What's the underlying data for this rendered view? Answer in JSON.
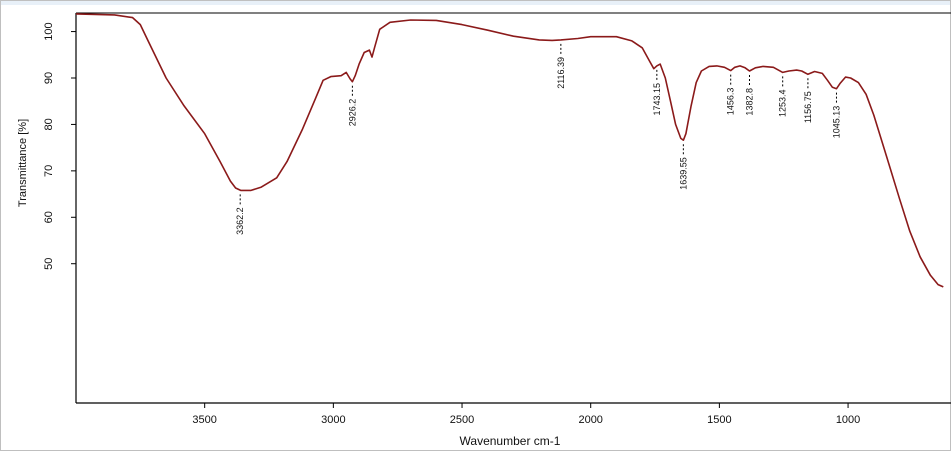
{
  "chart_data": {
    "type": "line",
    "title": "",
    "xlabel": "Wavenumber cm-1",
    "ylabel": "Transmittance [%]",
    "xlim": [
      4000,
      600
    ],
    "ylim": [
      20,
      104
    ],
    "x_ticks": [
      3500,
      3000,
      2500,
      2000,
      1500,
      1000
    ],
    "y_ticks": [
      50,
      60,
      70,
      80,
      90,
      100
    ],
    "grid": false,
    "line_color": "#8b1a1a",
    "series": [
      {
        "values": [
          [
            4000,
            103.8
          ],
          [
            3850,
            103.6
          ],
          [
            3780,
            103.0
          ],
          [
            3750,
            101.5
          ],
          [
            3720,
            98.0
          ],
          [
            3650,
            90.0
          ],
          [
            3580,
            84.0
          ],
          [
            3500,
            78.0
          ],
          [
            3440,
            72.0
          ],
          [
            3400,
            67.8
          ],
          [
            3380,
            66.3
          ],
          [
            3360,
            65.8
          ],
          [
            3320,
            65.8
          ],
          [
            3280,
            66.5
          ],
          [
            3220,
            68.5
          ],
          [
            3180,
            72.0
          ],
          [
            3120,
            79.0
          ],
          [
            3070,
            85.5
          ],
          [
            3040,
            89.5
          ],
          [
            3010,
            90.3
          ],
          [
            2970,
            90.5
          ],
          [
            2950,
            91.2
          ],
          [
            2935,
            89.8
          ],
          [
            2926,
            89.2
          ],
          [
            2915,
            90.5
          ],
          [
            2900,
            93.0
          ],
          [
            2880,
            95.5
          ],
          [
            2860,
            96.0
          ],
          [
            2850,
            94.5
          ],
          [
            2840,
            96.5
          ],
          [
            2820,
            100.5
          ],
          [
            2780,
            102.0
          ],
          [
            2700,
            102.5
          ],
          [
            2600,
            102.4
          ],
          [
            2500,
            101.5
          ],
          [
            2400,
            100.3
          ],
          [
            2300,
            99.0
          ],
          [
            2200,
            98.2
          ],
          [
            2150,
            98.1
          ],
          [
            2116,
            98.2
          ],
          [
            2050,
            98.5
          ],
          [
            2000,
            98.9
          ],
          [
            1900,
            98.9
          ],
          [
            1840,
            98.0
          ],
          [
            1800,
            96.5
          ],
          [
            1770,
            93.5
          ],
          [
            1755,
            92.0
          ],
          [
            1743,
            92.6
          ],
          [
            1730,
            93.0
          ],
          [
            1710,
            90.0
          ],
          [
            1690,
            85.0
          ],
          [
            1670,
            80.0
          ],
          [
            1650,
            77.0
          ],
          [
            1640,
            76.6
          ],
          [
            1630,
            78.0
          ],
          [
            1610,
            84.0
          ],
          [
            1590,
            89.0
          ],
          [
            1570,
            91.5
          ],
          [
            1540,
            92.5
          ],
          [
            1510,
            92.6
          ],
          [
            1480,
            92.3
          ],
          [
            1456,
            91.6
          ],
          [
            1440,
            92.3
          ],
          [
            1420,
            92.6
          ],
          [
            1400,
            92.2
          ],
          [
            1383,
            91.5
          ],
          [
            1360,
            92.2
          ],
          [
            1330,
            92.5
          ],
          [
            1290,
            92.3
          ],
          [
            1254,
            91.2
          ],
          [
            1230,
            91.5
          ],
          [
            1200,
            91.7
          ],
          [
            1180,
            91.5
          ],
          [
            1156,
            90.8
          ],
          [
            1130,
            91.4
          ],
          [
            1100,
            91.0
          ],
          [
            1080,
            89.5
          ],
          [
            1061,
            88.0
          ],
          [
            1045,
            87.7
          ],
          [
            1030,
            88.9
          ],
          [
            1010,
            90.2
          ],
          [
            990,
            90.0
          ],
          [
            960,
            89.0
          ],
          [
            930,
            86.5
          ],
          [
            900,
            82.0
          ],
          [
            850,
            73.0
          ],
          [
            800,
            64.0
          ],
          [
            760,
            57.0
          ],
          [
            720,
            51.5
          ],
          [
            680,
            47.5
          ],
          [
            650,
            45.5
          ],
          [
            630,
            45.0
          ]
        ]
      }
    ],
    "peaks": [
      {
        "x": 3362,
        "y": 65.8,
        "label": "3362.2"
      },
      {
        "x": 2926,
        "y": 89.2,
        "label": "2926.2"
      },
      {
        "x": 2116,
        "y": 98.2,
        "label": "2116.39"
      },
      {
        "x": 1743,
        "y": 92.6,
        "label": "1743.15"
      },
      {
        "x": 1640,
        "y": 76.6,
        "label": "1639.55"
      },
      {
        "x": 1456,
        "y": 91.6,
        "label": "1456.3"
      },
      {
        "x": 1383,
        "y": 91.5,
        "label": "1382.8"
      },
      {
        "x": 1254,
        "y": 91.2,
        "label": "1253.4"
      },
      {
        "x": 1156,
        "y": 90.8,
        "label": "1156.75"
      },
      {
        "x": 1045,
        "y": 87.7,
        "label": "1045.13"
      }
    ]
  }
}
